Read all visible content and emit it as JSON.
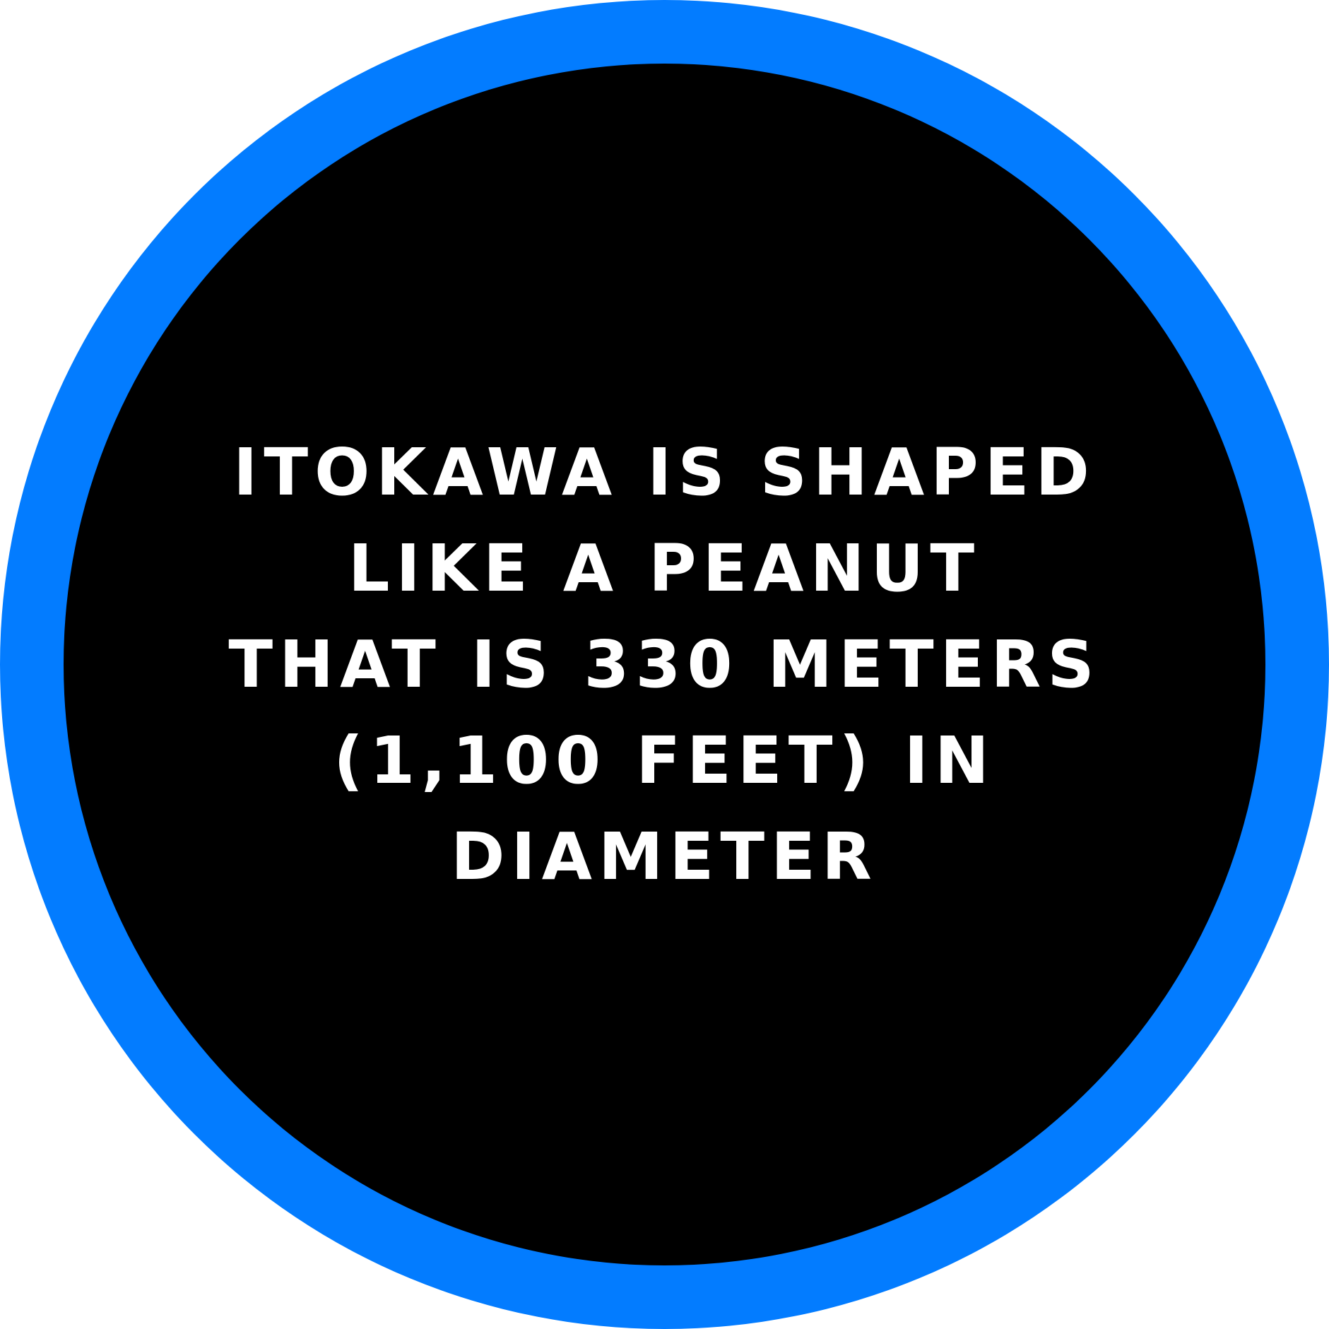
{
  "badge": {
    "ring_color": "#037cff",
    "disc_color": "#000000",
    "text_color": "#ffffff",
    "fact_lines": [
      "ITOKAWA IS SHAPED",
      "LIKE A PEANUT",
      "THAT IS 330 METERS",
      "(1,100 FEET) IN",
      "DIAMETER"
    ]
  }
}
